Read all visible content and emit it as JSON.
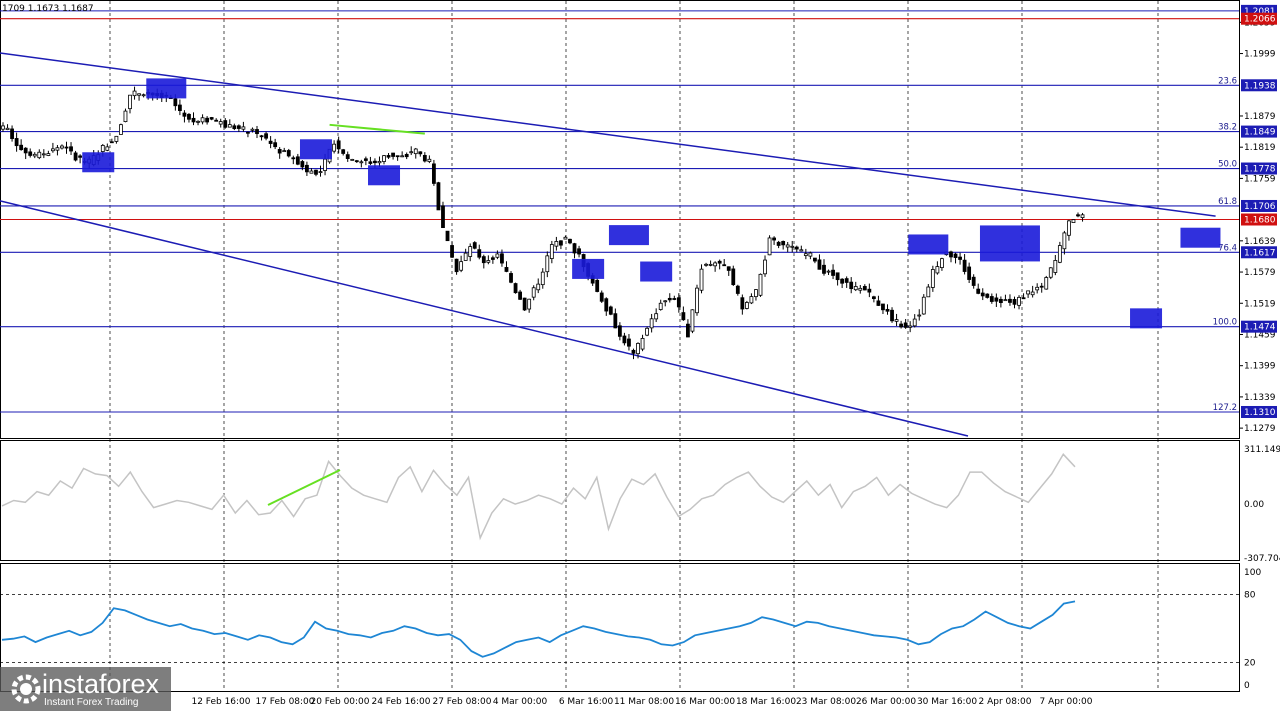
{
  "ohlc_header": "1709 1.1673 1.1687",
  "colors": {
    "channel": "#1c1cb4",
    "level": "#1c1cb4",
    "red_level": "#d01010",
    "marker": "#1a1ad9",
    "candle": "#000000",
    "cci": "#c4c4c4",
    "rsi": "#1e86d4",
    "divergence": "#66e022",
    "grid": "#000000"
  },
  "chart_data": [
    {
      "type": "candlestick",
      "instrument": "EUR/USD",
      "ylim": [
        1.126,
        1.21
      ],
      "y_ticks": [
        "1.2059",
        "1.1999",
        "1.1879",
        "1.1819",
        "1.1759",
        "1.1639",
        "1.1579",
        "1.1519",
        "1.1459",
        "1.1399",
        "1.1339",
        "1.1279"
      ],
      "price_labels": [
        {
          "value": "1.2081",
          "color": "#1c1cb4"
        },
        {
          "value": "1.2066",
          "color": "#d01010"
        },
        {
          "value": "1.1938",
          "color": "#1c1cb4"
        },
        {
          "value": "1.1849",
          "color": "#1c1cb4"
        },
        {
          "value": "1.1778",
          "color": "#1c1cb4"
        },
        {
          "value": "1.1706",
          "color": "#1c1cb4"
        },
        {
          "value": "1.1680",
          "color": "#d01010"
        },
        {
          "value": "1.1617",
          "color": "#1c1cb4"
        },
        {
          "value": "1.1474",
          "color": "#1c1cb4"
        },
        {
          "value": "1.1310",
          "color": "#1c1cb4"
        }
      ],
      "fibonacci_levels": [
        {
          "label": "23.6",
          "value": 1.1938
        },
        {
          "label": "38.2",
          "value": 1.1849
        },
        {
          "label": "50.0",
          "value": 1.1778
        },
        {
          "label": "61.8",
          "value": 1.1706
        },
        {
          "label": "76.4",
          "value": 1.1617
        },
        {
          "label": "100.0",
          "value": 1.1474
        },
        {
          "label": "127.2",
          "value": 1.131
        }
      ],
      "horizontal_lines": [
        {
          "value": 1.2081,
          "color": "#1c1cb4"
        },
        {
          "value": 1.2066,
          "color": "#d01010"
        },
        {
          "value": 1.168,
          "color": "#d01010"
        }
      ],
      "channel": {
        "upper": [
          [
            0,
            1.2048
          ],
          [
            52,
            1.1648
          ]
        ],
        "lower": [
          [
            0,
            1.1812
          ],
          [
            58,
            1.128
          ]
        ]
      },
      "close_series": [
        1.1852,
        1.1815,
        1.1802,
        1.181,
        1.1822,
        1.18,
        1.179,
        1.1818,
        1.184,
        1.192,
        1.1925,
        1.1918,
        1.191,
        1.188,
        1.187,
        1.1872,
        1.1862,
        1.1855,
        1.1848,
        1.1835,
        1.1812,
        1.18,
        1.1775,
        1.177,
        1.183,
        1.18,
        1.1792,
        1.179,
        1.1805,
        1.18,
        1.1812,
        1.179,
        1.166,
        1.158,
        1.163,
        1.16,
        1.161,
        1.156,
        1.151,
        1.156,
        1.163,
        1.164,
        1.161,
        1.156,
        1.151,
        1.146,
        1.142,
        1.147,
        1.152,
        1.153,
        1.146,
        1.159,
        1.16,
        1.158,
        1.151,
        1.154,
        1.164,
        1.163,
        1.162,
        1.161,
        1.158,
        1.157,
        1.155,
        1.1545,
        1.152,
        1.149,
        1.147,
        1.15,
        1.158,
        1.162,
        1.16,
        1.155,
        1.153,
        1.1525,
        1.152,
        1.154,
        1.155,
        1.16,
        1.168,
        1.169
      ],
      "markers": [
        {
          "x": 7,
          "y": 1.179,
          "shape": "low"
        },
        {
          "x": 12,
          "y": 1.1932,
          "shape": "high"
        },
        {
          "x": 23,
          "y": 1.1815,
          "shape": "low"
        },
        {
          "x": 28,
          "y": 1.1765,
          "shape": "low"
        },
        {
          "x": 43,
          "y": 1.1585,
          "shape": "low"
        },
        {
          "x": 46,
          "y": 1.165,
          "shape": "high"
        },
        {
          "x": 48,
          "y": 1.158,
          "shape": "low"
        },
        {
          "x": 68,
          "y": 1.1632,
          "shape": "high"
        },
        {
          "x": 74,
          "y": 1.1634,
          "shape": "wide"
        },
        {
          "x": 84,
          "y": 1.149,
          "shape": "low"
        },
        {
          "x": 88,
          "y": 1.1645,
          "shape": "high"
        }
      ],
      "divergence_line": [
        [
          24,
          1.1862
        ],
        [
          31,
          1.1845
        ]
      ]
    },
    {
      "type": "line",
      "indicator": "CCI",
      "y_ticks": [
        "311.1497",
        "0.00",
        "-307.704"
      ],
      "values": [
        -20,
        10,
        0,
        60,
        40,
        120,
        80,
        190,
        160,
        150,
        90,
        170,
        60,
        -30,
        -10,
        10,
        0,
        -20,
        -40,
        40,
        -60,
        10,
        -70,
        -60,
        10,
        -80,
        20,
        40,
        230,
        150,
        80,
        40,
        20,
        0,
        140,
        200,
        60,
        180,
        100,
        40,
        140,
        -200,
        -60,
        20,
        -10,
        10,
        40,
        20,
        -10,
        80,
        20,
        140,
        -150,
        20,
        130,
        100,
        160,
        30,
        -80,
        -40,
        20,
        40,
        100,
        140,
        170,
        90,
        30,
        0,
        60,
        120,
        40,
        100,
        -30,
        60,
        90,
        140,
        40,
        100,
        50,
        20,
        -10,
        -30,
        40,
        170,
        170,
        110,
        60,
        30,
        0,
        80,
        160,
        270,
        200
      ]
    },
    {
      "type": "line",
      "indicator": "RSI",
      "ylim": [
        0,
        100
      ],
      "y_ticks": [
        "100",
        "80",
        "20",
        "0"
      ],
      "values": [
        40,
        41,
        43,
        38,
        42,
        45,
        48,
        44,
        47,
        55,
        68,
        66,
        62,
        58,
        55,
        52,
        54,
        50,
        48,
        45,
        46,
        43,
        40,
        44,
        42,
        38,
        36,
        42,
        56,
        50,
        48,
        45,
        44,
        42,
        46,
        48,
        52,
        50,
        46,
        44,
        45,
        40,
        30,
        25,
        28,
        33,
        38,
        40,
        42,
        38,
        44,
        48,
        52,
        50,
        47,
        45,
        43,
        42,
        40,
        36,
        35,
        38,
        44,
        46,
        48,
        50,
        52,
        55,
        60,
        58,
        55,
        52,
        56,
        55,
        52,
        50,
        48,
        46,
        44,
        43,
        42,
        40,
        36,
        38,
        45,
        50,
        52,
        58,
        65,
        60,
        55,
        52,
        50,
        56,
        62,
        72,
        74
      ]
    }
  ],
  "time_axis": [
    "12 Feb 16:00",
    "17 Feb 08:00",
    "20 Feb 00:00",
    "24 Feb 16:00",
    "27 Feb 08:00",
    "4 Mar 00:00",
    "6 Mar 16:00",
    "11 Mar 08:00",
    "16 Mar 00:00",
    "18 Mar 16:00",
    "23 Mar 08:00",
    "26 Mar 00:00",
    "30 Mar 16:00",
    "2 Apr 08:00",
    "7 Apr 00:00"
  ],
  "logo": {
    "name": "instaforex",
    "tagline": "Instant Forex Trading"
  }
}
